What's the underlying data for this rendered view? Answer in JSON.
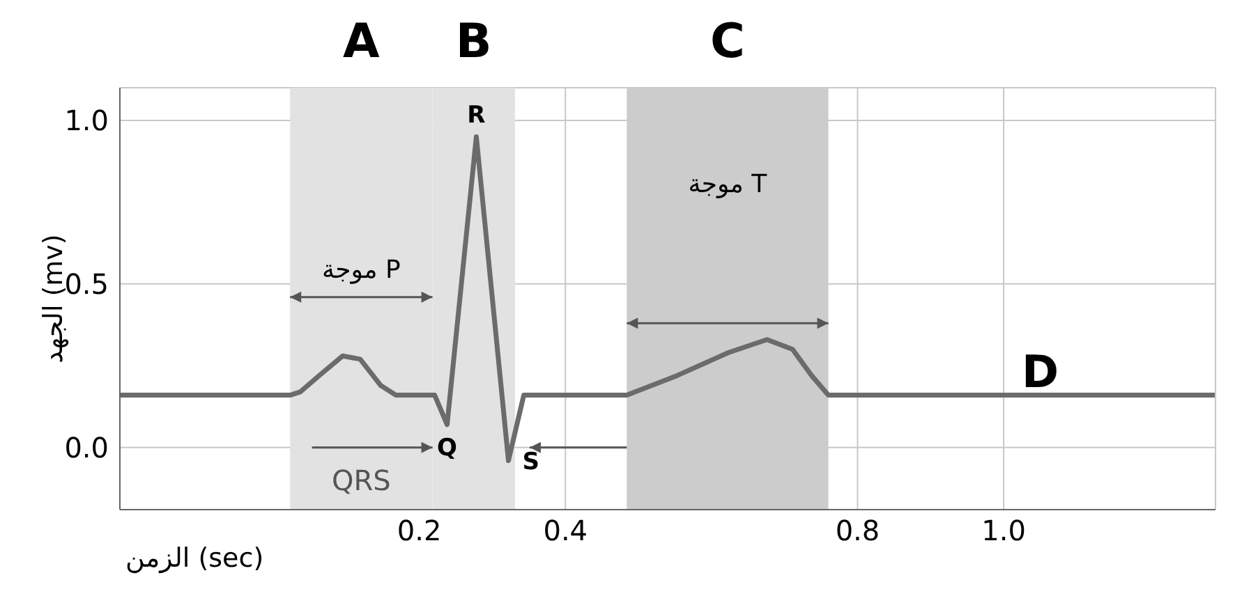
{
  "chart_data": {
    "type": "line",
    "xlabel": "الزمن (sec)",
    "ylabel": "الجهد (mv)",
    "x": [
      -0.21,
      0.023,
      0.037,
      0.063,
      0.095,
      0.119,
      0.147,
      0.168,
      0.221,
      0.238,
      0.278,
      0.322,
      0.343,
      0.484,
      0.553,
      0.623,
      0.676,
      0.711,
      0.737,
      0.76,
      1.289
    ],
    "series": [
      {
        "color": "#6b6b6b",
        "values": [
          0.16,
          0.16,
          0.17,
          0.22,
          0.28,
          0.27,
          0.19,
          0.16,
          0.16,
          0.07,
          0.95,
          -0.04,
          0.16,
          0.16,
          0.22,
          0.29,
          0.33,
          0.3,
          0.22,
          0.16,
          0.16
        ]
      }
    ],
    "xlim": [
      -0.21,
      1.29
    ],
    "ylim": [
      -0.19,
      1.1
    ],
    "xticks": [
      0.2,
      0.4,
      0.8,
      {
        "value": 1,
        "label": "1.0"
      }
    ],
    "yticks": [
      {
        "value": 0,
        "label": "0.0"
      },
      0.5,
      {
        "value": 1,
        "label": "1.0"
      }
    ],
    "grid": true,
    "marker": "none",
    "line_style": "solid",
    "bands": [
      {
        "axis": "x",
        "from": 0.023,
        "to": 0.218,
        "label": "A",
        "color": "#e2e2e2"
      },
      {
        "axis": "x",
        "from": 0.218,
        "to": 0.331,
        "label": "B",
        "color": "#e2e2e2"
      },
      {
        "axis": "x",
        "from": 0.484,
        "to": 0.76,
        "label": "C",
        "color": "#cccccc"
      }
    ],
    "annotations": [
      {
        "text": "R",
        "x": 0.278,
        "y": 0.95
      },
      {
        "text": "Q",
        "x": 0.238,
        "y": 0.07
      },
      {
        "text": "S",
        "x": 0.322,
        "y": -0.04
      },
      {
        "text": "D",
        "x": 1.05,
        "y": 0.16
      },
      "موجة P",
      "موجة T",
      {
        "text": "QRS",
        "x": 0.238,
        "y": 0.07
      }
    ]
  }
}
